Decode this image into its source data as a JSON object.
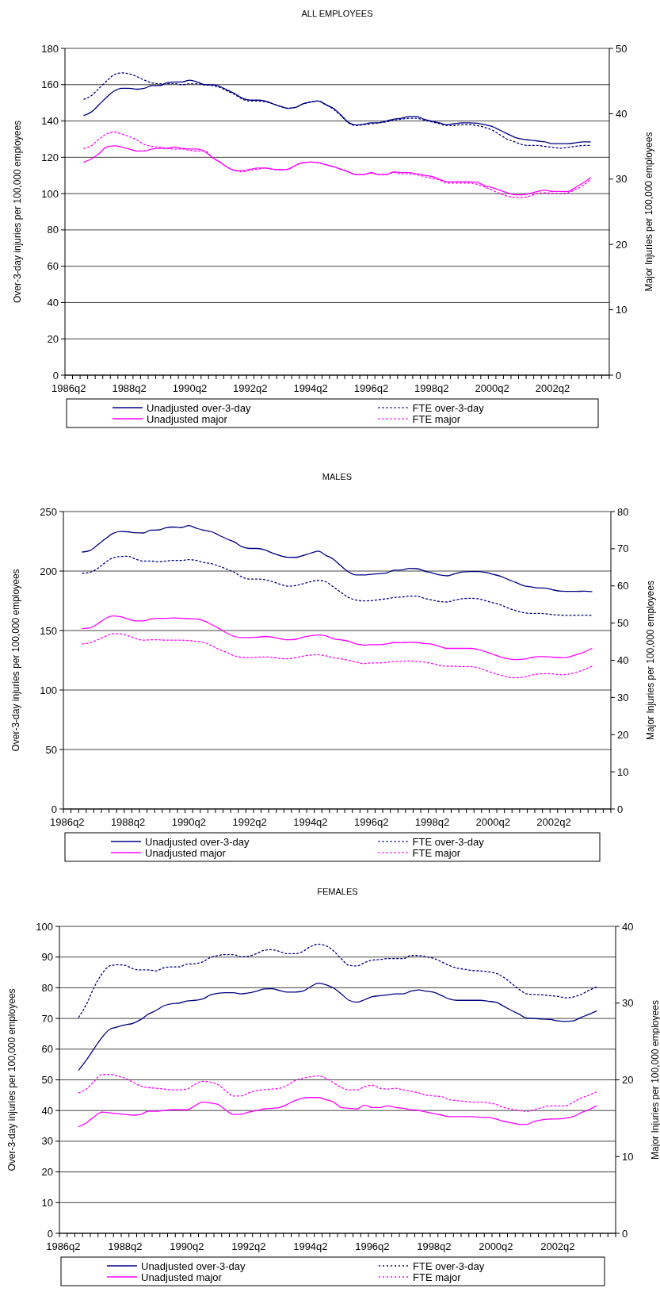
{
  "chart_data": [
    {
      "type": "line",
      "title": "ALL EMPLOYEES",
      "ylabel": "Over-3-day injuries per 100,000 employees",
      "y2label": "Major Injuries per 100,000 employees",
      "grid": "y",
      "legend": "bottom",
      "categories": [
        "1986q2",
        null,
        null,
        null,
        null,
        null,
        null,
        null,
        "1988q2",
        null,
        null,
        null,
        null,
        null,
        null,
        null,
        "1990q2",
        null,
        null,
        null,
        null,
        null,
        null,
        null,
        "1992q2",
        null,
        null,
        null,
        null,
        null,
        null,
        null,
        "1994q2",
        null,
        null,
        null,
        null,
        null,
        null,
        null,
        "1996q2",
        null,
        null,
        null,
        null,
        null,
        null,
        null,
        "1998q2",
        null,
        null,
        null,
        null,
        null,
        null,
        null,
        "2000q2",
        null,
        null,
        null,
        null,
        null,
        null,
        null,
        "2002q2",
        null,
        null,
        null,
        null,
        null,
        null,
        null
      ],
      "ylim": [
        0,
        180
      ],
      "yticks": [
        0,
        20,
        40,
        60,
        80,
        100,
        120,
        140,
        160,
        180
      ],
      "y2lim": [
        0,
        50
      ],
      "y2ticks": [
        0,
        10,
        20,
        30,
        40,
        50
      ],
      "series": [
        {
          "name": "Unadjusted over-3-day",
          "color": "#000080",
          "line_style": "solid",
          "values": [
            null,
            null,
            143,
            145,
            149,
            153,
            156.5,
            158,
            158,
            157.5,
            158,
            159.5,
            159.5,
            161,
            161.5,
            161.5,
            162.5,
            161.5,
            160,
            160,
            159,
            157,
            155,
            152.5,
            151.5,
            151.5,
            151,
            149.5,
            148,
            147,
            147.5,
            149.5,
            150.5,
            151,
            149,
            147,
            143.3,
            139.2,
            137.8,
            138.2,
            139,
            139,
            140,
            141,
            141.5,
            142.5,
            142.5,
            141,
            140,
            139,
            138,
            138.5,
            139,
            139,
            138.8,
            138,
            137,
            135,
            133,
            131,
            130,
            129.5,
            129,
            128.5,
            127.5,
            127.5,
            127.5,
            128,
            128.5,
            128.5,
            null,
            null
          ]
        },
        {
          "name": "FTE over-3-day",
          "color": "#000080",
          "line_style": "dotted",
          "values": [
            null,
            null,
            152,
            154,
            158,
            162,
            165.5,
            166.5,
            166,
            164.5,
            162.5,
            161,
            160.5,
            160.5,
            160.5,
            160,
            160.5,
            160.5,
            160,
            159.5,
            158.5,
            156.5,
            154.5,
            152,
            151,
            151,
            150.5,
            149.5,
            148,
            147,
            147.5,
            149.5,
            150.5,
            151,
            149,
            146.5,
            143,
            139,
            137.5,
            138,
            138.5,
            139,
            139.5,
            140.5,
            141,
            141.5,
            141.5,
            140.5,
            139.5,
            138.5,
            137.5,
            137.5,
            138,
            138,
            137.5,
            136.5,
            135,
            132.5,
            130,
            128.5,
            127,
            126.5,
            126.5,
            126,
            125.5,
            125,
            125.5,
            126,
            126.5,
            126.5,
            null,
            null
          ]
        },
        {
          "name": "Unadjusted major",
          "color": "#ff00ff",
          "line_style": "solid",
          "axis": "y2",
          "values": [
            null,
            null,
            32.6,
            33.1,
            33.9,
            34.9,
            35.1,
            34.9,
            34.6,
            34.3,
            34.3,
            34.6,
            34.7,
            34.7,
            34.9,
            34.7,
            34.6,
            34.6,
            34.2,
            33.3,
            32.6,
            31.8,
            31.3,
            31.3,
            31.5,
            31.7,
            31.7,
            31.5,
            31.4,
            31.5,
            32.1,
            32.5,
            32.6,
            32.5,
            32.2,
            31.9,
            31.5,
            31.1,
            30.7,
            30.7,
            31.0,
            30.7,
            30.7,
            31.1,
            31.0,
            31.0,
            30.8,
            30.6,
            30.4,
            30.0,
            29.6,
            29.6,
            29.6,
            29.6,
            29.5,
            29.0,
            28.7,
            28.3,
            27.9,
            27.6,
            27.6,
            27.8,
            28.1,
            28.3,
            28.1,
            28.1,
            28.1,
            28.7,
            29.4,
            30.2,
            null,
            null
          ]
        },
        {
          "name": "FTE major",
          "color": "#ff00ff",
          "line_style": "dotted",
          "axis": "y2",
          "values": [
            null,
            null,
            34.7,
            35.1,
            36.1,
            36.9,
            37.2,
            36.9,
            36.5,
            36.0,
            35.3,
            35.0,
            34.9,
            34.7,
            34.6,
            34.6,
            34.4,
            34.3,
            34.3,
            33.3,
            32.6,
            31.8,
            31.3,
            31.1,
            31.4,
            31.5,
            31.7,
            31.5,
            31.4,
            31.5,
            32.1,
            32.5,
            32.6,
            32.5,
            32.2,
            31.9,
            31.5,
            31.1,
            30.7,
            30.7,
            30.9,
            30.7,
            30.7,
            31.0,
            30.8,
            30.8,
            30.7,
            30.4,
            30.1,
            29.9,
            29.4,
            29.4,
            29.4,
            29.4,
            29.2,
            28.8,
            28.3,
            27.8,
            27.4,
            27.2,
            27.2,
            27.4,
            27.8,
            27.9,
            27.8,
            27.8,
            27.9,
            28.4,
            29.0,
            29.9,
            null,
            null
          ]
        }
      ]
    },
    {
      "type": "line",
      "title": "MALES",
      "ylabel": "Over-3-day injuries per 100,000 employees",
      "y2label": "Major Injuries per 100,000 employees",
      "grid": "y",
      "legend": "bottom",
      "categories": [
        "1986q2",
        null,
        null,
        null,
        null,
        null,
        null,
        null,
        "1988q2",
        null,
        null,
        null,
        null,
        null,
        null,
        null,
        "1990q2",
        null,
        null,
        null,
        null,
        null,
        null,
        null,
        "1992q2",
        null,
        null,
        null,
        null,
        null,
        null,
        null,
        "1994q2",
        null,
        null,
        null,
        null,
        null,
        null,
        null,
        "1996q2",
        null,
        null,
        null,
        null,
        null,
        null,
        null,
        "1998q2",
        null,
        null,
        null,
        null,
        null,
        null,
        null,
        "2000q2",
        null,
        null,
        null,
        null,
        null,
        null,
        null,
        "2002q2",
        null,
        null,
        null,
        null,
        null,
        null,
        null
      ],
      "ylim": [
        0,
        250
      ],
      "yticks": [
        0,
        50,
        100,
        150,
        200,
        250
      ],
      "y2lim": [
        0,
        80
      ],
      "y2ticks": [
        0,
        10,
        20,
        30,
        40,
        50,
        60,
        70,
        80
      ],
      "series": [
        {
          "name": "Unadjusted over-3-day",
          "color": "#000080",
          "line_style": "solid",
          "values": [
            null,
            null,
            216,
            217.3,
            222,
            227,
            231.6,
            233.3,
            233,
            232.2,
            232,
            234.4,
            234.5,
            236.4,
            237,
            236.5,
            238.2,
            236,
            234.2,
            233,
            230,
            227,
            224.4,
            220.4,
            219,
            219,
            217.8,
            215.1,
            213,
            211.6,
            211.5,
            213,
            215,
            216.7,
            213.3,
            210,
            204.4,
            199.3,
            196.7,
            196.7,
            197.3,
            197.8,
            198.4,
            200.7,
            200.9,
            202.2,
            202,
            200,
            198.4,
            196.7,
            196,
            197.8,
            199.3,
            199.6,
            199.6,
            198.9,
            197.3,
            195.6,
            192.9,
            190.4,
            187.8,
            186.7,
            185.8,
            185.6,
            184,
            183.1,
            182.9,
            182.9,
            183.1,
            182.7,
            null,
            null
          ]
        },
        {
          "name": "FTE over-3-day",
          "color": "#000080",
          "line_style": "dotted",
          "values": [
            null,
            null,
            198.2,
            198.9,
            202.2,
            207.1,
            211.1,
            212.2,
            212.4,
            210,
            208.4,
            208.4,
            207.8,
            208.4,
            208.9,
            208.9,
            209.6,
            208.9,
            207.1,
            206.2,
            204,
            201.6,
            198.9,
            194.9,
            193.3,
            193.3,
            192.7,
            191.1,
            188.9,
            187.3,
            187.8,
            189.3,
            191.1,
            192.2,
            191,
            186.7,
            182.2,
            177.8,
            175.6,
            174.9,
            175.1,
            176,
            176.7,
            177.8,
            178.2,
            178.9,
            178.9,
            177.1,
            175.6,
            174.4,
            174,
            175.6,
            176.7,
            177.1,
            176.7,
            175.1,
            173.3,
            171.6,
            168.9,
            166.7,
            165.1,
            164.4,
            164.4,
            164,
            163.3,
            162.9,
            162.7,
            162.9,
            162.9,
            162.7,
            null,
            null
          ]
        },
        {
          "name": "Unadjusted major",
          "color": "#ff00ff",
          "line_style": "solid",
          "axis": "y2",
          "values": [
            null,
            null,
            48.5,
            48.7,
            49.8,
            51.2,
            51.9,
            51.7,
            51.1,
            50.6,
            50.6,
            51.1,
            51.3,
            51.3,
            51.4,
            51.3,
            51.2,
            51.1,
            50.6,
            49.6,
            48.5,
            47.3,
            46.4,
            46.1,
            46.1,
            46.2,
            46.4,
            46.2,
            45.8,
            45.5,
            45.6,
            46.2,
            46.6,
            46.8,
            46.6,
            45.8,
            45.5,
            45.1,
            44.4,
            44.1,
            44.2,
            44.2,
            44.4,
            44.8,
            44.7,
            44.9,
            44.8,
            44.5,
            44.3,
            43.7,
            43.2,
            43.2,
            43.2,
            43.2,
            42.9,
            42.3,
            41.6,
            40.9,
            40.4,
            40.2,
            40.3,
            40.7,
            41,
            41,
            40.8,
            40.7,
            40.9,
            41.5,
            42.2,
            43.2,
            null,
            null
          ]
        },
        {
          "name": "FTE major",
          "color": "#ff00ff",
          "line_style": "dotted",
          "axis": "y2",
          "values": [
            null,
            null,
            44.4,
            44.7,
            45.5,
            46.4,
            47.1,
            47.1,
            46.6,
            45.9,
            45.4,
            45.5,
            45.5,
            45.4,
            45.4,
            45.4,
            45.3,
            45.1,
            44.8,
            43.9,
            42.9,
            42.1,
            41.2,
            40.8,
            40.7,
            40.8,
            40.9,
            40.8,
            40.5,
            40.4,
            40.7,
            41.1,
            41.4,
            41.5,
            41.2,
            40.7,
            40.4,
            40,
            39.5,
            39.1,
            39.3,
            39.3,
            39.4,
            39.7,
            39.7,
            39.8,
            39.7,
            39.5,
            39.1,
            38.6,
            38.4,
            38.4,
            38.3,
            38.3,
            38,
            37.3,
            36.6,
            36,
            35.5,
            35.3,
            35.5,
            36,
            36.3,
            36.4,
            36.3,
            36.1,
            36.3,
            36.8,
            37.5,
            38.4,
            null,
            null
          ]
        }
      ]
    },
    {
      "type": "line",
      "title": "FEMALES",
      "ylabel": "Over-3-day injuries per 100,000 employees",
      "y2label": "Major Injuries per 100,000 employees",
      "grid": "y",
      "legend": "bottom",
      "categories": [
        "1986q2",
        null,
        null,
        null,
        null,
        null,
        null,
        null,
        "1988q2",
        null,
        null,
        null,
        null,
        null,
        null,
        null,
        "1990q2",
        null,
        null,
        null,
        null,
        null,
        null,
        null,
        "1992q2",
        null,
        null,
        null,
        null,
        null,
        null,
        null,
        "1994q2",
        null,
        null,
        null,
        null,
        null,
        null,
        null,
        "1996q2",
        null,
        null,
        null,
        null,
        null,
        null,
        null,
        "1998q2",
        null,
        null,
        null,
        null,
        null,
        null,
        null,
        "2000q2",
        null,
        null,
        null,
        null,
        null,
        null,
        null,
        "2002q2",
        null,
        null,
        null,
        null,
        null,
        null,
        null
      ],
      "ylim": [
        0,
        100
      ],
      "yticks": [
        0,
        10,
        20,
        30,
        40,
        50,
        60,
        70,
        80,
        90,
        100
      ],
      "y2lim": [
        0,
        40
      ],
      "y2ticks": [
        0,
        10,
        20,
        30,
        40
      ],
      "series": [
        {
          "name": "Unadjusted over-3-day",
          "color": "#000080",
          "line_style": "solid",
          "values": [
            null,
            null,
            53.2,
            56.5,
            60.2,
            63.8,
            66.4,
            67.2,
            67.9,
            68.4,
            69.6,
            71.4,
            72.6,
            74.1,
            74.8,
            75,
            75.7,
            75.9,
            76.3,
            77.6,
            78.2,
            78.4,
            78.4,
            78,
            78.3,
            78.9,
            79.6,
            79.7,
            79.1,
            78.6,
            78.6,
            78.9,
            80.3,
            81.5,
            81,
            79.9,
            78,
            75.9,
            75.3,
            76.1,
            77.1,
            77.4,
            77.7,
            78,
            78,
            78.9,
            79.3,
            78.9,
            78.5,
            77.4,
            76.3,
            75.9,
            75.9,
            75.9,
            75.9,
            75.6,
            75.3,
            74,
            72.6,
            71.4,
            70.1,
            70,
            69.8,
            69.7,
            69.2,
            69,
            69.2,
            70.3,
            71.3,
            72.4,
            null,
            null
          ]
        },
        {
          "name": "FTE over-3-day",
          "color": "#000080",
          "line_style": "dotted",
          "values": [
            null,
            null,
            70.4,
            74.6,
            80.2,
            84.5,
            87.1,
            87.5,
            87.3,
            86.2,
            85.8,
            85.8,
            85.5,
            86.5,
            86.8,
            86.8,
            87.7,
            87.8,
            88.4,
            89.8,
            90.5,
            90.8,
            90.8,
            90.1,
            90.3,
            91.1,
            92.2,
            92.4,
            91.8,
            91.1,
            91.1,
            91.8,
            93.4,
            94.2,
            93.7,
            92,
            89.4,
            87.3,
            87.1,
            88.2,
            89,
            89.2,
            89.5,
            89.5,
            89.5,
            90.5,
            90.5,
            90.1,
            89.5,
            88.4,
            87.2,
            86.4,
            86,
            85.6,
            85.5,
            85.2,
            84.7,
            83.4,
            81.5,
            79.5,
            78,
            77.8,
            77.7,
            77.4,
            77.2,
            76.7,
            77,
            77.8,
            79.1,
            80.2,
            null,
            null
          ]
        },
        {
          "name": "Unadjusted major",
          "color": "#ff00ff",
          "line_style": "solid",
          "axis": "y2",
          "values": [
            null,
            null,
            13.9,
            14.4,
            15.2,
            15.8,
            15.7,
            15.6,
            15.5,
            15.4,
            15.5,
            15.9,
            15.9,
            16,
            16.1,
            16.1,
            16.1,
            16.6,
            17.1,
            17,
            16.8,
            16.1,
            15.5,
            15.5,
            15.8,
            16,
            16.2,
            16.3,
            16.4,
            16.8,
            17.3,
            17.6,
            17.7,
            17.7,
            17.4,
            17.1,
            16.4,
            16.3,
            16.2,
            16.7,
            16.4,
            16.4,
            16.6,
            16.4,
            16.3,
            16.1,
            16,
            15.8,
            15.6,
            15.4,
            15.2,
            15.2,
            15.2,
            15.2,
            15.1,
            15.1,
            14.9,
            14.6,
            14.4,
            14.2,
            14.2,
            14.6,
            14.8,
            14.9,
            14.9,
            15,
            15.2,
            15.7,
            16.1,
            16.6,
            null,
            null
          ]
        },
        {
          "name": "FTE major",
          "color": "#ff00ff",
          "line_style": "dotted",
          "axis": "y2",
          "values": [
            null,
            null,
            18.3,
            18.8,
            19.8,
            20.7,
            20.7,
            20.5,
            20.2,
            19.7,
            19.2,
            19,
            18.9,
            18.8,
            18.7,
            18.7,
            18.8,
            19.4,
            19.8,
            19.7,
            19.4,
            18.6,
            17.9,
            17.9,
            18.3,
            18.6,
            18.7,
            18.8,
            18.9,
            19.3,
            19.9,
            20.2,
            20.4,
            20.5,
            20.2,
            19.6,
            19,
            18.7,
            18.7,
            19.1,
            19.3,
            18.9,
            18.8,
            18.9,
            18.7,
            18.5,
            18.3,
            18,
            17.9,
            17.8,
            17.4,
            17.3,
            17.2,
            17.1,
            17.1,
            17,
            16.8,
            16.4,
            16.2,
            16,
            15.9,
            16.1,
            16.4,
            16.6,
            16.6,
            16.6,
            17.1,
            17.6,
            18,
            18.4,
            null,
            null
          ]
        }
      ]
    }
  ]
}
